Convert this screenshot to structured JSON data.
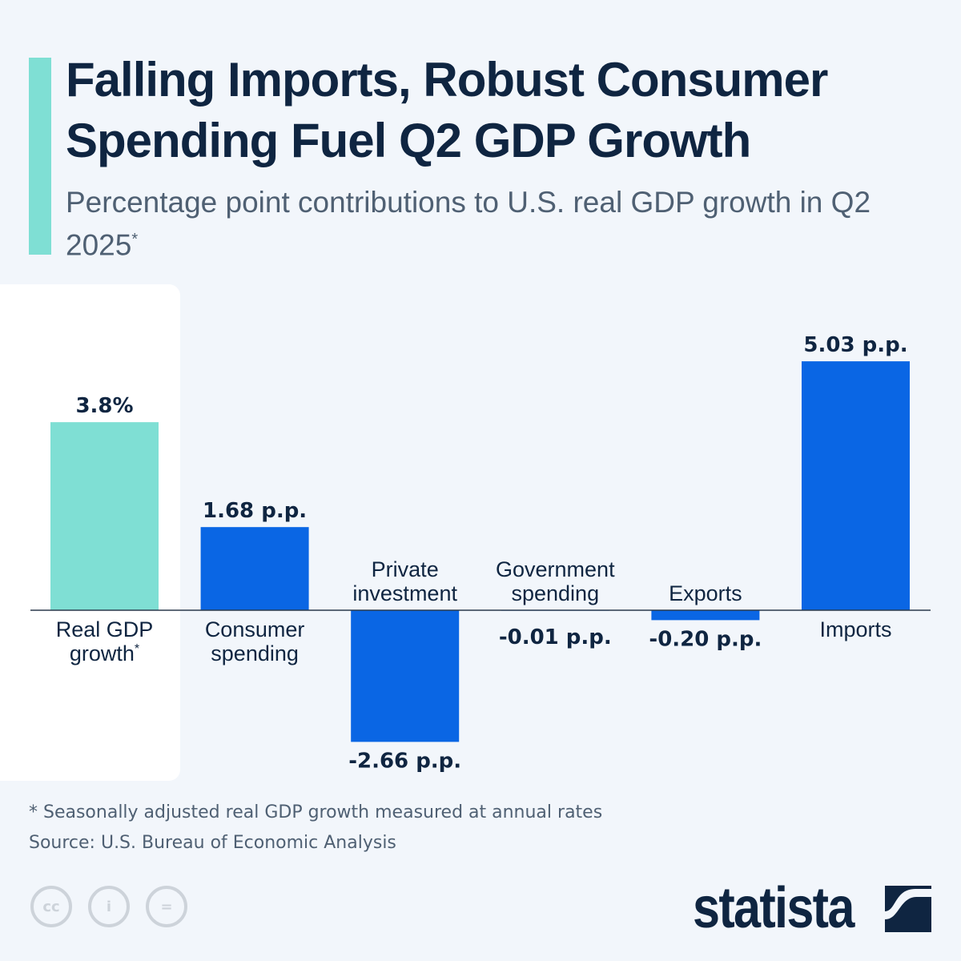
{
  "title": "Falling Imports, Robust Consumer Spending Fuel Q2 GDP Growth",
  "subtitle": "Percentage point contributions to U.S. real GDP growth in Q2 2025",
  "subtitle_mark": "*",
  "footnote": "* Seasonally adjusted real GDP growth measured at annual rates",
  "source": "Source: U.S. Bureau of Economic Analysis",
  "logo": "statista",
  "license_icons": [
    "cc-icon",
    "attribution-icon",
    "no-derivatives-icon"
  ],
  "chart_data": {
    "type": "bar",
    "title": "",
    "xlabel": "",
    "ylabel": "",
    "grid": false,
    "categories": [
      "Real GDP growth*",
      "Consumer spending",
      "Private investment",
      "Government spending",
      "Exports",
      "Imports"
    ],
    "category_lines": [
      [
        "Real GDP",
        "growth*"
      ],
      [
        "Consumer",
        "spending"
      ],
      [
        "Private",
        "investment"
      ],
      [
        "Government",
        "spending"
      ],
      [
        "Exports"
      ],
      [
        "Imports"
      ]
    ],
    "values": [
      3.8,
      1.68,
      -2.66,
      -0.01,
      -0.2,
      5.03
    ],
    "data_labels": [
      "3.8%",
      "1.68 p.p.",
      "-2.66 p.p.",
      "-0.01 p.p.",
      "-0.20 p.p.",
      "5.03 p.p."
    ],
    "colors": [
      "#7fdfd4",
      "#0a66e4",
      "#0a66e4",
      "#0a66e4",
      "#0a66e4",
      "#0a66e4"
    ]
  }
}
